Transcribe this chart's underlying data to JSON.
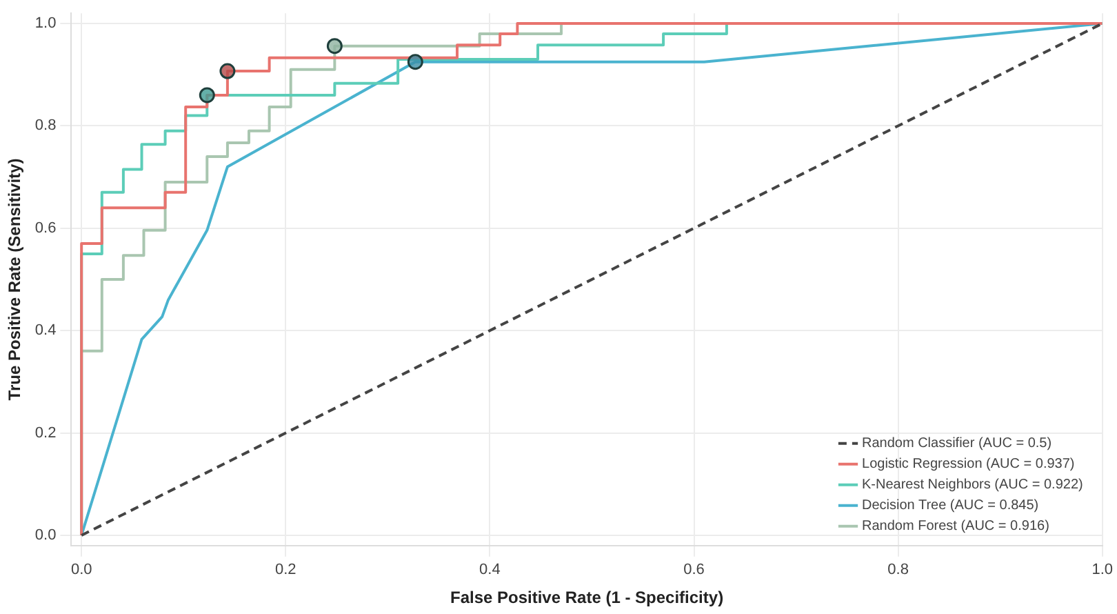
{
  "chart_data": {
    "type": "line",
    "xlabel": "False Positive Rate (1 - Specificity)",
    "ylabel": "True Positive Rate (Sensitivity)",
    "xlim": [
      -0.01,
      1.0
    ],
    "ylim": [
      -0.02,
      1.02
    ],
    "xticks": [
      {
        "value": 0,
        "label": "0.0"
      },
      0.2,
      0.4,
      0.6,
      0.8,
      {
        "value": 1,
        "label": "1.0"
      }
    ],
    "yticks": [
      {
        "value": 0,
        "label": "0.0"
      },
      0.2,
      0.4,
      0.6,
      0.8,
      {
        "value": 1,
        "label": "1.0"
      }
    ],
    "grid": true,
    "legend": "bottom right",
    "marker": "none",
    "series": [
      {
        "name": "Random Classifier (AUC = 0.5)",
        "color": "#444444",
        "line_style": "dashed",
        "x": [
          0,
          1
        ],
        "values": [
          0,
          1
        ]
      },
      {
        "name": "Logistic Regression (AUC = 0.937)",
        "color": "#e8736e",
        "x": [
          0,
          0,
          0.02,
          0.02,
          0.082,
          0.082,
          0.102,
          0.102,
          0.123,
          0.123,
          0.143,
          0.143,
          0.184,
          0.184,
          0.368,
          0.368,
          0.41,
          0.41,
          0.427,
          0.427,
          1
        ],
        "values": [
          0,
          0.57,
          0.57,
          0.64,
          0.64,
          0.67,
          0.67,
          0.837,
          0.837,
          0.86,
          0.86,
          0.907,
          0.907,
          0.933,
          0.933,
          0.958,
          0.958,
          0.98,
          0.98,
          1,
          1
        ]
      },
      {
        "name": "K-Nearest Neighbors (AUC = 0.922)",
        "color": "#5ccdb8",
        "x": [
          0,
          0,
          0.02,
          0.02,
          0.041,
          0.041,
          0.059,
          0.059,
          0.082,
          0.082,
          0.102,
          0.102,
          0.123,
          0.123,
          0.248,
          0.248,
          0.31,
          0.31,
          0.447,
          0.447,
          0.57,
          0.57,
          0.632,
          0.632,
          1
        ],
        "values": [
          0,
          0.55,
          0.55,
          0.67,
          0.67,
          0.715,
          0.715,
          0.764,
          0.764,
          0.79,
          0.79,
          0.82,
          0.82,
          0.86,
          0.86,
          0.883,
          0.883,
          0.93,
          0.93,
          0.958,
          0.958,
          0.98,
          0.98,
          1,
          1
        ]
      },
      {
        "name": "Decision Tree (AUC = 0.845)",
        "color": "#4ab3cf",
        "x": [
          0,
          0.059,
          0.079,
          0.085,
          0.123,
          0.143,
          0.327,
          0.61,
          1
        ],
        "values": [
          0,
          0.383,
          0.427,
          0.46,
          0.596,
          0.72,
          0.925,
          0.925,
          1
        ]
      },
      {
        "name": "Random Forest (AUC = 0.916)",
        "color": "#a9c6b0",
        "x": [
          0,
          0,
          0.02,
          0.02,
          0.041,
          0.041,
          0.061,
          0.061,
          0.082,
          0.082,
          0.123,
          0.123,
          0.143,
          0.143,
          0.164,
          0.164,
          0.184,
          0.184,
          0.205,
          0.205,
          0.248,
          0.248,
          0.39,
          0.39,
          0.47,
          0.47,
          1
        ],
        "values": [
          0,
          0.36,
          0.36,
          0.5,
          0.5,
          0.547,
          0.547,
          0.596,
          0.596,
          0.69,
          0.69,
          0.74,
          0.74,
          0.767,
          0.767,
          0.79,
          0.79,
          0.837,
          0.837,
          0.91,
          0.91,
          0.956,
          0.956,
          0.98,
          0.98,
          1,
          1
        ]
      },
      {
        "type": "scatter",
        "marker": "circle",
        "colors": [
          "#b44a48",
          "#3f9c94",
          "#3a8fa6",
          "#8fb3a0"
        ],
        "x": [
          0.143,
          0.123,
          0.327,
          0.248
        ],
        "values": [
          0.907,
          0.86,
          0.925,
          0.956
        ]
      }
    ]
  }
}
